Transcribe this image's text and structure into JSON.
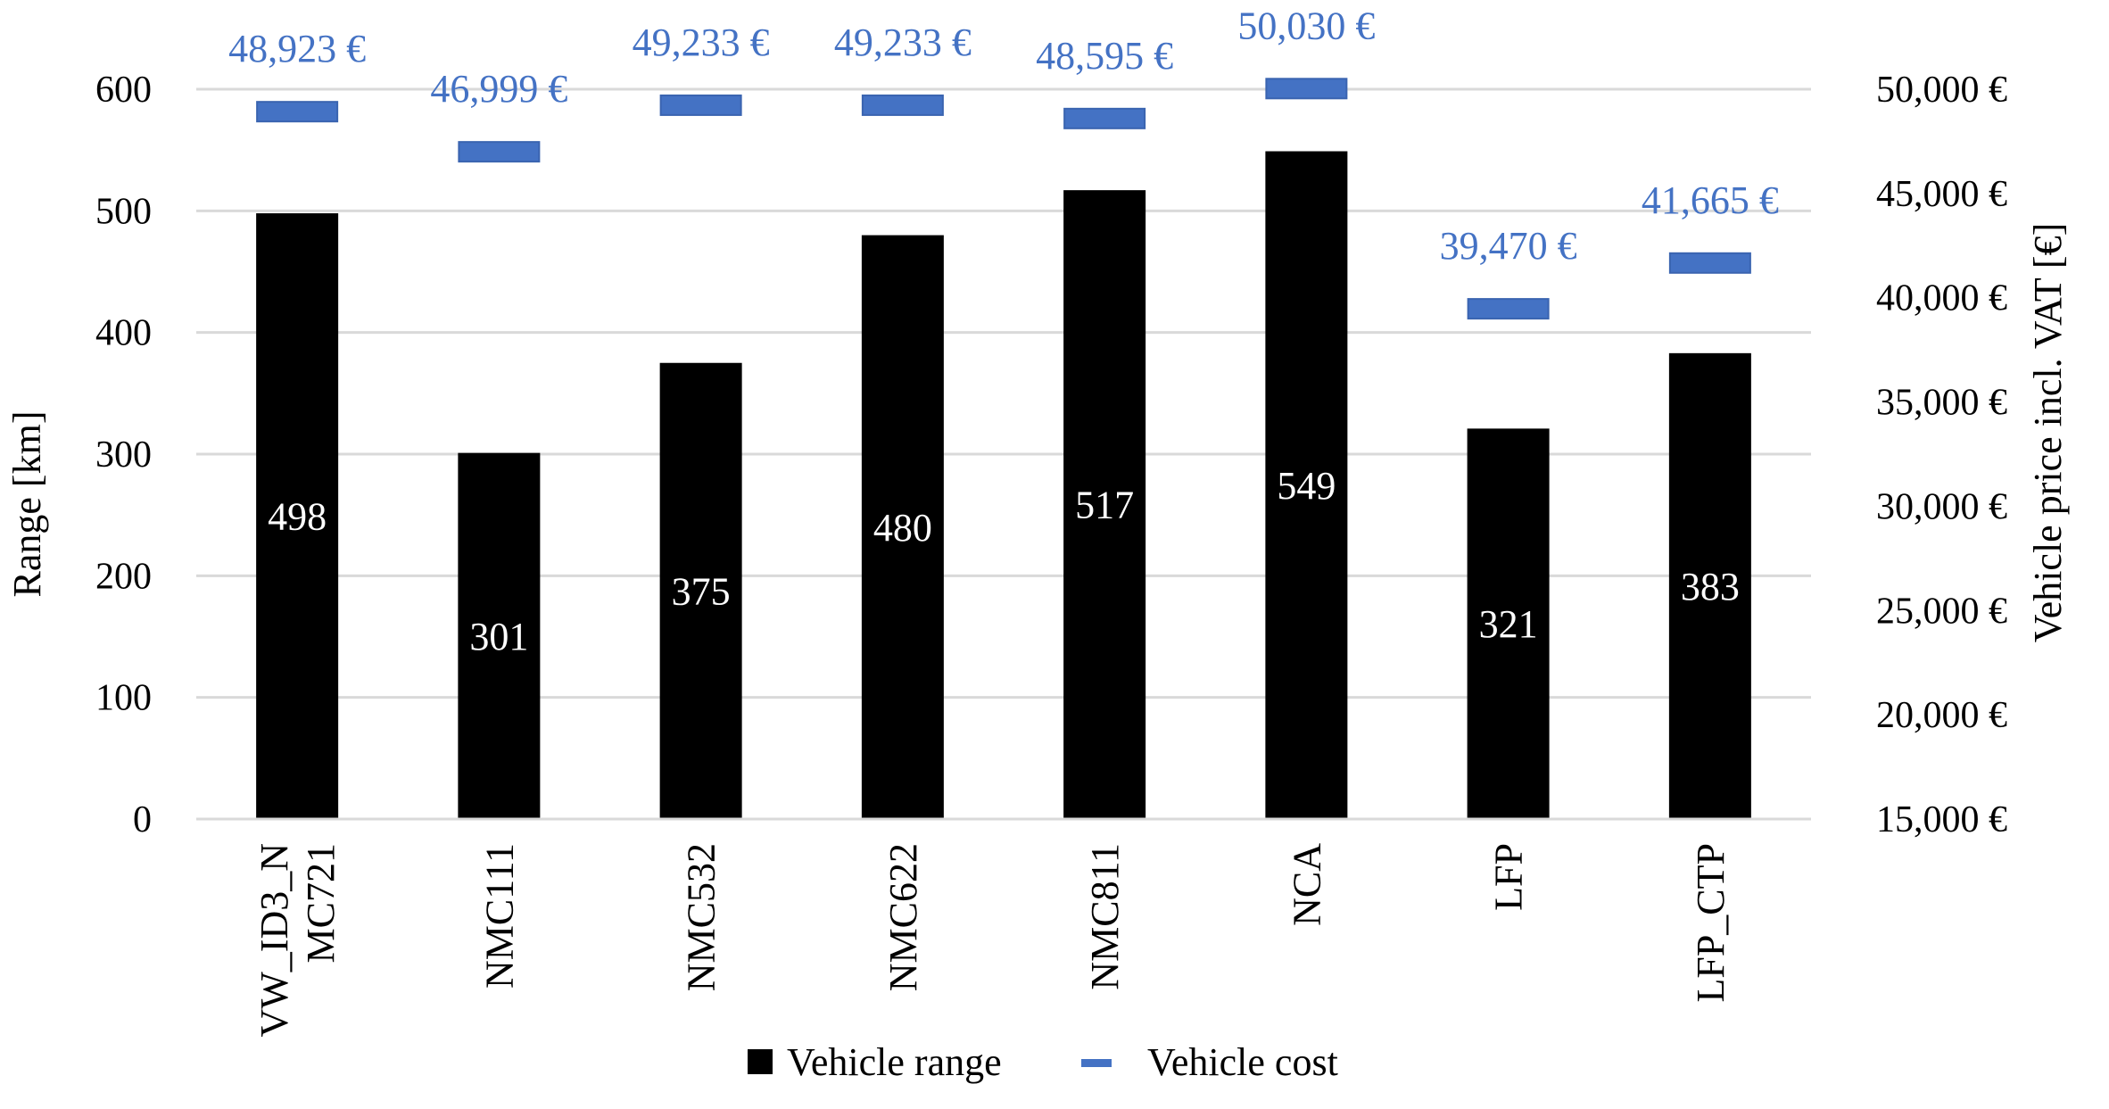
{
  "chart_data": {
    "type": "bar",
    "categories": [
      "VW_ID3_NMC721",
      "NMC111",
      "NMC532",
      "NMC622",
      "NMC811",
      "NCA",
      "LFP",
      "LFP_CTP"
    ],
    "category_labels": [
      [
        "VW_ID3_N",
        "MC721"
      ],
      [
        "NMC111"
      ],
      [
        "NMC532"
      ],
      [
        "NMC622"
      ],
      [
        "NMC811"
      ],
      [
        "NCA"
      ],
      [
        "LFP"
      ],
      [
        "LFP_CTP"
      ]
    ],
    "series": [
      {
        "name": "Vehicle range",
        "axis": "left",
        "kind": "bar",
        "color": "#000000",
        "values": [
          498,
          301,
          375,
          480,
          517,
          549,
          321,
          383
        ],
        "labels": [
          "498",
          "301",
          "375",
          "480",
          "517",
          "549",
          "321",
          "383"
        ]
      },
      {
        "name": "Vehicle cost",
        "axis": "right",
        "kind": "marker",
        "color": "#4472c4",
        "values": [
          48923,
          46999,
          49233,
          49233,
          48595,
          50030,
          39470,
          41665
        ],
        "labels": [
          "48,923 €",
          "46,999 €",
          "49,233 €",
          "49,233 €",
          "48,595 €",
          "50,030 €",
          "39,470 €",
          "41,665 €"
        ]
      }
    ],
    "ylabel": "Range [km]",
    "ylim": [
      0,
      600
    ],
    "yticks": [
      "0",
      "100",
      "200",
      "300",
      "400",
      "500",
      "600"
    ],
    "y2label": "Vehicle price incl. VAT [€]",
    "y2lim": [
      15000,
      50000
    ],
    "y2ticks": [
      "15,000 €",
      "20,000 €",
      "25,000 €",
      "30,000 €",
      "35,000 €",
      "40,000 €",
      "45,000 €",
      "50,000 €"
    ],
    "grid": true,
    "legend_position": "bottom-center",
    "legend": [
      "Vehicle range",
      "Vehicle cost"
    ]
  }
}
